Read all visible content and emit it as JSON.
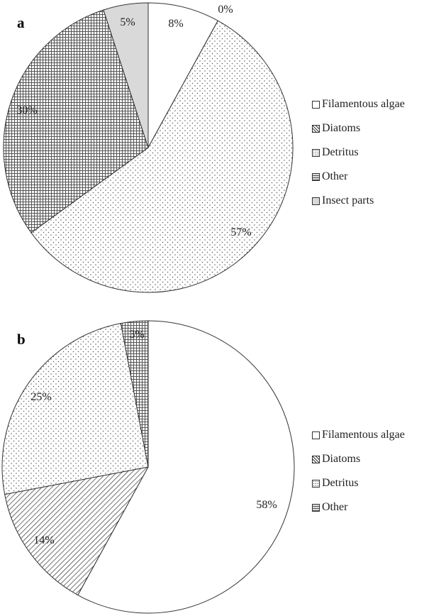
{
  "chart_data": [
    {
      "type": "pie",
      "panel_label": "a",
      "categories": [
        "Filamentous algae",
        "Diatoms",
        "Detritus",
        "Other",
        "Insect parts"
      ],
      "values": [
        8,
        0,
        57,
        30,
        5
      ],
      "slice_labels": [
        "8%",
        "0%",
        "57%",
        "30%",
        "5%"
      ],
      "legend": {
        "placement": "right",
        "entries": [
          "Filamentous algae",
          "Diatoms",
          "Detritus",
          "Other",
          "Insect parts"
        ]
      },
      "patterns": [
        "white",
        "diagonal-hatch",
        "dots",
        "grid",
        "light-gray"
      ],
      "start_angle": "12 o'clock",
      "direction": "clockwise"
    },
    {
      "type": "pie",
      "panel_label": "b",
      "categories": [
        "Filamentous algae",
        "Diatoms",
        "Detritus",
        "Other"
      ],
      "values": [
        58,
        14,
        25,
        3
      ],
      "slice_labels": [
        "58%",
        "14%",
        "25%",
        "3%"
      ],
      "legend": {
        "placement": "right",
        "entries": [
          "Filamentous algae",
          "Diatoms",
          "Detritus",
          "Other"
        ]
      },
      "patterns": [
        "white",
        "diagonal-hatch",
        "dots",
        "grid"
      ],
      "start_angle": "12 o'clock",
      "direction": "clockwise"
    }
  ]
}
